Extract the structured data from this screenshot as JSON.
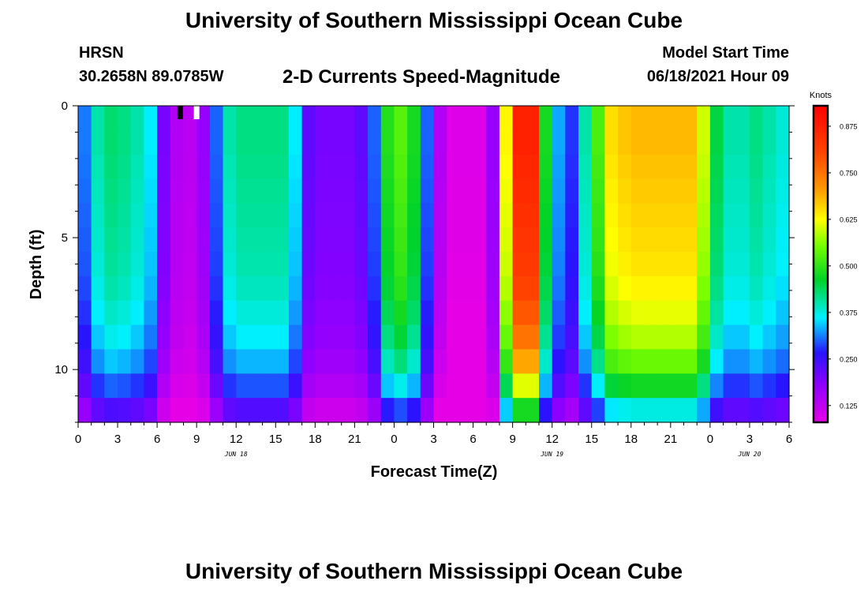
{
  "header": {
    "title": "University of Southern Mississippi Ocean Cube",
    "station": "HRSN",
    "coordinates": "30.2658N  89.0785W",
    "chart_title": "2-D Currents Speed-Magnitude",
    "model_label": "Model Start Time",
    "model_time": "06/18/2021 Hour 09"
  },
  "footer": {
    "title": "University of Southern Mississippi Ocean Cube"
  },
  "chart_data": {
    "type": "heatmap",
    "title": "2-D Currents Speed-Magnitude",
    "xlabel": "Forecast Time(Z)",
    "ylabel": "Depth (ft)",
    "x_ticks": [
      "0",
      "3",
      "6",
      "9",
      "12",
      "15",
      "18",
      "21",
      "0",
      "3",
      "6",
      "9",
      "12",
      "15",
      "18",
      "21",
      "0",
      "3",
      "6"
    ],
    "date_labels": [
      {
        "label": "JUN 18",
        "at_hour": 12
      },
      {
        "label": "JUN 19",
        "at_hour": 36
      },
      {
        "label": "JUN 20",
        "at_hour": 51
      }
    ],
    "x_range_hours": [
      0,
      54
    ],
    "y_ticks": [
      "0",
      "5",
      "10"
    ],
    "y_range_ft": [
      0,
      12
    ],
    "colorbar": {
      "title": "Knots",
      "ticks": [
        "0.875",
        "0.750",
        "0.625",
        "0.500",
        "0.375",
        "0.250",
        "0.125"
      ],
      "range": [
        0.08,
        0.93
      ]
    },
    "markers": [
      {
        "name": "start",
        "hour": 7.75,
        "color": "#000000"
      },
      {
        "name": "now",
        "hour": 9,
        "color": "#ffffff"
      }
    ],
    "time_hours": [
      0,
      1,
      2,
      3,
      4,
      5,
      6,
      7,
      8,
      9,
      10,
      11,
      12,
      13,
      14,
      15,
      16,
      17,
      18,
      19,
      20,
      21,
      22,
      23,
      24,
      25,
      26,
      27,
      28,
      29,
      30,
      31,
      32,
      33,
      34,
      35,
      36,
      37,
      38,
      39,
      40,
      41,
      42,
      43,
      44,
      45,
      46,
      47,
      48,
      49,
      50,
      51,
      52,
      53
    ],
    "surface_speed_knots": [
      0.31,
      0.4,
      0.43,
      0.42,
      0.4,
      0.36,
      0.2,
      0.14,
      0.13,
      0.17,
      0.3,
      0.4,
      0.42,
      0.42,
      0.42,
      0.42,
      0.36,
      0.22,
      0.2,
      0.2,
      0.2,
      0.22,
      0.3,
      0.49,
      0.53,
      0.48,
      0.3,
      0.14,
      0.09,
      0.09,
      0.09,
      0.17,
      0.63,
      0.87,
      0.87,
      0.48,
      0.33,
      0.28,
      0.4,
      0.52,
      0.65,
      0.67,
      0.68,
      0.68,
      0.68,
      0.68,
      0.68,
      0.6,
      0.45,
      0.4,
      0.4,
      0.42,
      0.4,
      0.38
    ],
    "depth_levels_ft": [
      0,
      1,
      2,
      3,
      4,
      5,
      6,
      7,
      8,
      9,
      10,
      11,
      12
    ],
    "depth_factors": [
      1.0,
      1.0,
      0.99,
      0.98,
      0.97,
      0.96,
      0.95,
      0.93,
      0.9,
      0.86,
      0.8,
      0.7,
      0.55
    ]
  }
}
